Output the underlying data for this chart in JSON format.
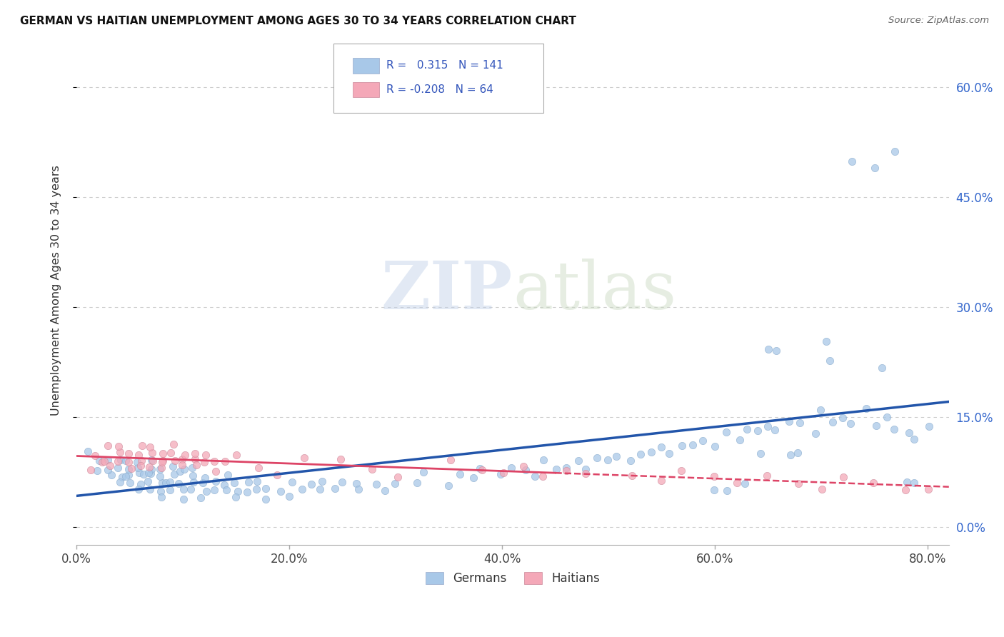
{
  "title": "GERMAN VS HAITIAN UNEMPLOYMENT AMONG AGES 30 TO 34 YEARS CORRELATION CHART",
  "source": "Source: ZipAtlas.com",
  "ylabel": "Unemployment Among Ages 30 to 34 years",
  "xlim": [
    0.0,
    0.82
  ],
  "ylim": [
    -0.025,
    0.67
  ],
  "yticks": [
    0.0,
    0.15,
    0.3,
    0.45,
    0.6
  ],
  "ytick_labels": [
    "0.0%",
    "15.0%",
    "30.0%",
    "45.0%",
    "60.0%"
  ],
  "xticks": [
    0.0,
    0.2,
    0.4,
    0.6,
    0.8
  ],
  "xtick_labels": [
    "0.0%",
    "20.0%",
    "40.0%",
    "60.0%",
    "80.0%"
  ],
  "german_color": "#A8C8E8",
  "haitian_color": "#F4A8B8",
  "german_line_color": "#2255AA",
  "haitian_line_color": "#DD4466",
  "legend_R_german": "0.315",
  "legend_N_german": "141",
  "legend_R_haitian": "-0.208",
  "legend_N_haitian": "64",
  "watermark_zip": "ZIP",
  "watermark_atlas": "atlas",
  "german_x": [
    0.01,
    0.02,
    0.02,
    0.03,
    0.03,
    0.03,
    0.04,
    0.04,
    0.04,
    0.04,
    0.05,
    0.05,
    0.05,
    0.05,
    0.05,
    0.06,
    0.06,
    0.06,
    0.06,
    0.06,
    0.06,
    0.07,
    0.07,
    0.07,
    0.07,
    0.07,
    0.07,
    0.08,
    0.08,
    0.08,
    0.08,
    0.08,
    0.08,
    0.09,
    0.09,
    0.09,
    0.09,
    0.1,
    0.1,
    0.1,
    0.1,
    0.1,
    0.11,
    0.11,
    0.11,
    0.11,
    0.12,
    0.12,
    0.12,
    0.12,
    0.13,
    0.13,
    0.14,
    0.14,
    0.14,
    0.15,
    0.15,
    0.15,
    0.16,
    0.16,
    0.17,
    0.17,
    0.18,
    0.18,
    0.19,
    0.2,
    0.2,
    0.21,
    0.22,
    0.23,
    0.23,
    0.24,
    0.25,
    0.26,
    0.27,
    0.28,
    0.29,
    0.3,
    0.32,
    0.33,
    0.35,
    0.36,
    0.37,
    0.38,
    0.4,
    0.41,
    0.42,
    0.43,
    0.44,
    0.45,
    0.46,
    0.47,
    0.48,
    0.49,
    0.5,
    0.51,
    0.52,
    0.53,
    0.54,
    0.55,
    0.56,
    0.57,
    0.58,
    0.59,
    0.6,
    0.61,
    0.62,
    0.63,
    0.64,
    0.65,
    0.66,
    0.67,
    0.68,
    0.69,
    0.7,
    0.71,
    0.72,
    0.73,
    0.74,
    0.75,
    0.76,
    0.77,
    0.78,
    0.79,
    0.8,
    0.7,
    0.71,
    0.73,
    0.75,
    0.77,
    0.76,
    0.65,
    0.66,
    0.67,
    0.68,
    0.64,
    0.63,
    0.6,
    0.61,
    0.79,
    0.78
  ],
  "german_y": [
    0.1,
    0.08,
    0.09,
    0.07,
    0.09,
    0.08,
    0.07,
    0.09,
    0.08,
    0.06,
    0.07,
    0.08,
    0.06,
    0.09,
    0.07,
    0.07,
    0.08,
    0.06,
    0.05,
    0.09,
    0.07,
    0.07,
    0.08,
    0.06,
    0.05,
    0.09,
    0.07,
    0.06,
    0.07,
    0.05,
    0.08,
    0.06,
    0.04,
    0.06,
    0.07,
    0.05,
    0.08,
    0.06,
    0.07,
    0.05,
    0.08,
    0.04,
    0.06,
    0.07,
    0.05,
    0.08,
    0.06,
    0.05,
    0.07,
    0.04,
    0.06,
    0.05,
    0.06,
    0.05,
    0.07,
    0.05,
    0.06,
    0.04,
    0.05,
    0.06,
    0.05,
    0.06,
    0.05,
    0.04,
    0.05,
    0.06,
    0.04,
    0.05,
    0.05,
    0.05,
    0.06,
    0.05,
    0.06,
    0.06,
    0.05,
    0.06,
    0.05,
    0.06,
    0.06,
    0.07,
    0.06,
    0.07,
    0.07,
    0.08,
    0.07,
    0.08,
    0.08,
    0.07,
    0.09,
    0.08,
    0.08,
    0.09,
    0.08,
    0.09,
    0.09,
    0.1,
    0.09,
    0.1,
    0.1,
    0.11,
    0.1,
    0.11,
    0.11,
    0.12,
    0.11,
    0.13,
    0.12,
    0.13,
    0.13,
    0.14,
    0.13,
    0.14,
    0.14,
    0.13,
    0.16,
    0.14,
    0.15,
    0.14,
    0.16,
    0.14,
    0.15,
    0.14,
    0.13,
    0.12,
    0.14,
    0.25,
    0.23,
    0.5,
    0.49,
    0.51,
    0.22,
    0.24,
    0.24,
    0.1,
    0.1,
    0.1,
    0.06,
    0.05,
    0.05,
    0.06,
    0.06
  ],
  "haitian_x": [
    0.01,
    0.02,
    0.02,
    0.03,
    0.03,
    0.03,
    0.04,
    0.04,
    0.04,
    0.05,
    0.05,
    0.05,
    0.06,
    0.06,
    0.06,
    0.06,
    0.07,
    0.07,
    0.07,
    0.07,
    0.08,
    0.08,
    0.08,
    0.08,
    0.09,
    0.09,
    0.09,
    0.1,
    0.1,
    0.1,
    0.11,
    0.11,
    0.11,
    0.12,
    0.12,
    0.13,
    0.13,
    0.14,
    0.15,
    0.17,
    0.19,
    0.21,
    0.25,
    0.28,
    0.3,
    0.35,
    0.38,
    0.4,
    0.42,
    0.44,
    0.46,
    0.48,
    0.52,
    0.55,
    0.57,
    0.6,
    0.62,
    0.65,
    0.68,
    0.7,
    0.72,
    0.75,
    0.78,
    0.8
  ],
  "haitian_y": [
    0.08,
    0.1,
    0.09,
    0.09,
    0.11,
    0.08,
    0.1,
    0.09,
    0.11,
    0.09,
    0.1,
    0.08,
    0.09,
    0.1,
    0.11,
    0.08,
    0.09,
    0.1,
    0.08,
    0.11,
    0.09,
    0.1,
    0.08,
    0.09,
    0.09,
    0.1,
    0.11,
    0.09,
    0.08,
    0.1,
    0.09,
    0.1,
    0.08,
    0.09,
    0.1,
    0.09,
    0.08,
    0.09,
    0.1,
    0.08,
    0.07,
    0.09,
    0.09,
    0.08,
    0.07,
    0.09,
    0.08,
    0.07,
    0.08,
    0.07,
    0.08,
    0.07,
    0.07,
    0.06,
    0.08,
    0.07,
    0.06,
    0.07,
    0.06,
    0.05,
    0.07,
    0.06,
    0.05,
    0.05
  ]
}
